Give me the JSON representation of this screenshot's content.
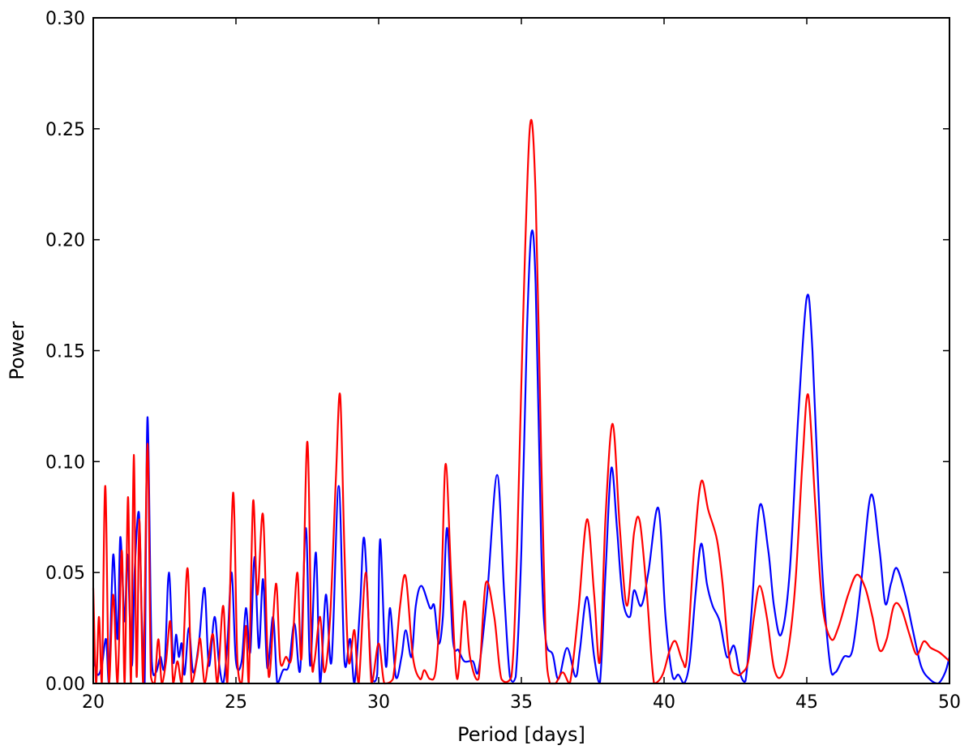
{
  "chart_data": {
    "type": "line",
    "xlabel": "Period [days]",
    "ylabel": "Power",
    "xlim": [
      20,
      50
    ],
    "ylim": [
      0,
      0.3
    ],
    "xticks": [
      "20",
      "25",
      "30",
      "35",
      "40",
      "45",
      "50"
    ],
    "yticks": [
      "0.00",
      "0.05",
      "0.10",
      "0.15",
      "0.20",
      "0.25",
      "0.30"
    ],
    "grid": false,
    "legend": "none",
    "series": [
      {
        "color": "#0000ff",
        "points": [
          [
            20.0,
            0.012
          ],
          [
            20.15,
            0.004
          ],
          [
            20.3,
            0.008
          ],
          [
            20.45,
            0.02
          ],
          [
            20.55,
            0.0
          ],
          [
            20.7,
            0.058
          ],
          [
            20.85,
            0.02
          ],
          [
            20.95,
            0.066
          ],
          [
            21.1,
            0.028
          ],
          [
            21.2,
            0.058
          ],
          [
            21.35,
            0.008
          ],
          [
            21.45,
            0.05
          ],
          [
            21.6,
            0.077
          ],
          [
            21.7,
            0.03
          ],
          [
            21.8,
            0.0
          ],
          [
            21.9,
            0.12
          ],
          [
            22.05,
            0.01
          ],
          [
            22.2,
            0.005
          ],
          [
            22.35,
            0.012
          ],
          [
            22.5,
            0.008
          ],
          [
            22.65,
            0.05
          ],
          [
            22.8,
            0.01
          ],
          [
            22.9,
            0.022
          ],
          [
            23.0,
            0.012
          ],
          [
            23.1,
            0.018
          ],
          [
            23.2,
            0.004
          ],
          [
            23.35,
            0.025
          ],
          [
            23.5,
            0.005
          ],
          [
            23.7,
            0.018
          ],
          [
            23.9,
            0.043
          ],
          [
            24.05,
            0.008
          ],
          [
            24.25,
            0.03
          ],
          [
            24.4,
            0.01
          ],
          [
            24.55,
            0.0
          ],
          [
            24.7,
            0.018
          ],
          [
            24.85,
            0.05
          ],
          [
            25.0,
            0.01
          ],
          [
            25.2,
            0.01
          ],
          [
            25.35,
            0.034
          ],
          [
            25.5,
            0.014
          ],
          [
            25.65,
            0.057
          ],
          [
            25.8,
            0.016
          ],
          [
            25.95,
            0.047
          ],
          [
            26.1,
            0.007
          ],
          [
            26.3,
            0.03
          ],
          [
            26.45,
            0.0
          ],
          [
            26.65,
            0.006
          ],
          [
            26.85,
            0.008
          ],
          [
            27.05,
            0.027
          ],
          [
            27.25,
            0.006
          ],
          [
            27.45,
            0.07
          ],
          [
            27.6,
            0.008
          ],
          [
            27.8,
            0.059
          ],
          [
            27.95,
            0.0
          ],
          [
            28.15,
            0.04
          ],
          [
            28.35,
            0.01
          ],
          [
            28.6,
            0.089
          ],
          [
            28.8,
            0.01
          ],
          [
            29.0,
            0.02
          ],
          [
            29.15,
            0.0
          ],
          [
            29.35,
            0.035
          ],
          [
            29.5,
            0.065
          ],
          [
            29.75,
            0.003
          ],
          [
            29.95,
            0.004
          ],
          [
            30.05,
            0.065
          ],
          [
            30.25,
            0.008
          ],
          [
            30.4,
            0.034
          ],
          [
            30.6,
            0.003
          ],
          [
            30.8,
            0.012
          ],
          [
            30.95,
            0.024
          ],
          [
            31.15,
            0.012
          ],
          [
            31.3,
            0.035
          ],
          [
            31.5,
            0.044
          ],
          [
            31.8,
            0.034
          ],
          [
            31.95,
            0.035
          ],
          [
            32.1,
            0.018
          ],
          [
            32.25,
            0.03
          ],
          [
            32.4,
            0.07
          ],
          [
            32.6,
            0.02
          ],
          [
            32.8,
            0.015
          ],
          [
            33.0,
            0.01
          ],
          [
            33.3,
            0.01
          ],
          [
            33.5,
            0.006
          ],
          [
            33.8,
            0.04
          ],
          [
            34.15,
            0.094
          ],
          [
            34.4,
            0.04
          ],
          [
            34.6,
            0.003
          ],
          [
            34.8,
            0.003
          ],
          [
            35.0,
            0.06
          ],
          [
            35.2,
            0.16
          ],
          [
            35.35,
            0.203
          ],
          [
            35.5,
            0.18
          ],
          [
            35.7,
            0.06
          ],
          [
            35.85,
            0.02
          ],
          [
            36.1,
            0.013
          ],
          [
            36.3,
            0.002
          ],
          [
            36.6,
            0.016
          ],
          [
            36.9,
            0.003
          ],
          [
            37.05,
            0.015
          ],
          [
            37.3,
            0.039
          ],
          [
            37.55,
            0.012
          ],
          [
            37.75,
            0.0
          ],
          [
            37.95,
            0.05
          ],
          [
            38.15,
            0.097
          ],
          [
            38.35,
            0.07
          ],
          [
            38.55,
            0.038
          ],
          [
            38.8,
            0.03
          ],
          [
            38.95,
            0.042
          ],
          [
            39.2,
            0.035
          ],
          [
            39.45,
            0.05
          ],
          [
            39.8,
            0.079
          ],
          [
            40.05,
            0.03
          ],
          [
            40.3,
            0.003
          ],
          [
            40.5,
            0.004
          ],
          [
            40.7,
            0.0
          ],
          [
            40.9,
            0.01
          ],
          [
            41.1,
            0.04
          ],
          [
            41.3,
            0.063
          ],
          [
            41.5,
            0.045
          ],
          [
            41.7,
            0.035
          ],
          [
            41.95,
            0.028
          ],
          [
            42.2,
            0.012
          ],
          [
            42.45,
            0.017
          ],
          [
            42.65,
            0.005
          ],
          [
            42.85,
            0.001
          ],
          [
            43.05,
            0.03
          ],
          [
            43.35,
            0.08
          ],
          [
            43.65,
            0.06
          ],
          [
            43.85,
            0.035
          ],
          [
            44.1,
            0.022
          ],
          [
            44.4,
            0.05
          ],
          [
            44.7,
            0.12
          ],
          [
            45.0,
            0.174
          ],
          [
            45.2,
            0.15
          ],
          [
            45.5,
            0.06
          ],
          [
            45.8,
            0.01
          ],
          [
            46.0,
            0.005
          ],
          [
            46.3,
            0.012
          ],
          [
            46.6,
            0.015
          ],
          [
            46.9,
            0.045
          ],
          [
            47.25,
            0.085
          ],
          [
            47.55,
            0.06
          ],
          [
            47.75,
            0.036
          ],
          [
            47.95,
            0.045
          ],
          [
            48.15,
            0.052
          ],
          [
            48.45,
            0.04
          ],
          [
            48.7,
            0.025
          ],
          [
            49.0,
            0.008
          ],
          [
            49.3,
            0.002
          ],
          [
            49.6,
            0.0
          ],
          [
            49.85,
            0.005
          ],
          [
            50.0,
            0.012
          ]
        ]
      },
      {
        "color": "#ff0000",
        "points": [
          [
            20.0,
            0.043
          ],
          [
            20.1,
            0.0
          ],
          [
            20.2,
            0.03
          ],
          [
            20.3,
            0.0
          ],
          [
            20.42,
            0.089
          ],
          [
            20.55,
            0.0
          ],
          [
            20.7,
            0.04
          ],
          [
            20.85,
            0.0
          ],
          [
            21.0,
            0.06
          ],
          [
            21.1,
            0.0
          ],
          [
            21.22,
            0.084
          ],
          [
            21.32,
            0.0
          ],
          [
            21.42,
            0.103
          ],
          [
            21.52,
            0.003
          ],
          [
            21.62,
            0.074
          ],
          [
            21.75,
            0.0
          ],
          [
            21.9,
            0.108
          ],
          [
            22.02,
            0.003
          ],
          [
            22.15,
            0.0
          ],
          [
            22.28,
            0.02
          ],
          [
            22.4,
            0.0
          ],
          [
            22.55,
            0.01
          ],
          [
            22.7,
            0.028
          ],
          [
            22.8,
            0.0
          ],
          [
            22.95,
            0.01
          ],
          [
            23.1,
            0.0
          ],
          [
            23.3,
            0.052
          ],
          [
            23.45,
            0.0
          ],
          [
            23.65,
            0.012
          ],
          [
            23.75,
            0.02
          ],
          [
            23.9,
            0.0
          ],
          [
            24.05,
            0.012
          ],
          [
            24.2,
            0.022
          ],
          [
            24.35,
            0.0
          ],
          [
            24.55,
            0.035
          ],
          [
            24.7,
            0.0
          ],
          [
            24.9,
            0.086
          ],
          [
            25.05,
            0.01
          ],
          [
            25.2,
            0.0
          ],
          [
            25.35,
            0.026
          ],
          [
            25.45,
            0.0
          ],
          [
            25.6,
            0.082
          ],
          [
            25.75,
            0.04
          ],
          [
            25.95,
            0.076
          ],
          [
            26.15,
            0.003
          ],
          [
            26.4,
            0.045
          ],
          [
            26.55,
            0.01
          ],
          [
            26.75,
            0.012
          ],
          [
            26.95,
            0.012
          ],
          [
            27.15,
            0.05
          ],
          [
            27.3,
            0.012
          ],
          [
            27.5,
            0.109
          ],
          [
            27.65,
            0.012
          ],
          [
            27.75,
            0.01
          ],
          [
            27.95,
            0.03
          ],
          [
            28.1,
            0.005
          ],
          [
            28.3,
            0.03
          ],
          [
            28.5,
            0.092
          ],
          [
            28.65,
            0.13
          ],
          [
            28.8,
            0.06
          ],
          [
            28.95,
            0.01
          ],
          [
            29.15,
            0.024
          ],
          [
            29.3,
            0.0
          ],
          [
            29.55,
            0.05
          ],
          [
            29.75,
            0.0
          ],
          [
            30.0,
            0.018
          ],
          [
            30.2,
            0.0
          ],
          [
            30.5,
            0.002
          ],
          [
            30.75,
            0.035
          ],
          [
            30.95,
            0.048
          ],
          [
            31.2,
            0.012
          ],
          [
            31.45,
            0.002
          ],
          [
            31.6,
            0.006
          ],
          [
            31.8,
            0.002
          ],
          [
            32.0,
            0.006
          ],
          [
            32.2,
            0.045
          ],
          [
            32.35,
            0.099
          ],
          [
            32.55,
            0.045
          ],
          [
            32.75,
            0.002
          ],
          [
            33.0,
            0.037
          ],
          [
            33.2,
            0.012
          ],
          [
            33.5,
            0.002
          ],
          [
            33.75,
            0.045
          ],
          [
            34.05,
            0.03
          ],
          [
            34.3,
            0.002
          ],
          [
            34.65,
            0.003
          ],
          [
            34.85,
            0.06
          ],
          [
            35.05,
            0.16
          ],
          [
            35.3,
            0.251
          ],
          [
            35.5,
            0.22
          ],
          [
            35.7,
            0.1
          ],
          [
            35.85,
            0.02
          ],
          [
            36.0,
            0.0
          ],
          [
            36.2,
            0.0
          ],
          [
            36.45,
            0.005
          ],
          [
            36.7,
            0.0
          ],
          [
            37.0,
            0.033
          ],
          [
            37.3,
            0.074
          ],
          [
            37.55,
            0.04
          ],
          [
            37.75,
            0.01
          ],
          [
            37.95,
            0.075
          ],
          [
            38.2,
            0.117
          ],
          [
            38.45,
            0.07
          ],
          [
            38.7,
            0.035
          ],
          [
            38.95,
            0.068
          ],
          [
            39.15,
            0.073
          ],
          [
            39.4,
            0.04
          ],
          [
            39.65,
            0.0
          ],
          [
            39.95,
            0.004
          ],
          [
            40.2,
            0.015
          ],
          [
            40.4,
            0.019
          ],
          [
            40.65,
            0.01
          ],
          [
            40.8,
            0.012
          ],
          [
            41.05,
            0.06
          ],
          [
            41.3,
            0.091
          ],
          [
            41.55,
            0.078
          ],
          [
            41.85,
            0.065
          ],
          [
            42.05,
            0.045
          ],
          [
            42.3,
            0.01
          ],
          [
            42.55,
            0.004
          ],
          [
            42.75,
            0.005
          ],
          [
            42.95,
            0.01
          ],
          [
            43.15,
            0.03
          ],
          [
            43.35,
            0.044
          ],
          [
            43.6,
            0.03
          ],
          [
            43.85,
            0.007
          ],
          [
            44.1,
            0.003
          ],
          [
            44.35,
            0.015
          ],
          [
            44.6,
            0.045
          ],
          [
            44.85,
            0.1
          ],
          [
            45.05,
            0.13
          ],
          [
            45.3,
            0.08
          ],
          [
            45.55,
            0.035
          ],
          [
            45.85,
            0.02
          ],
          [
            46.1,
            0.025
          ],
          [
            46.45,
            0.04
          ],
          [
            46.75,
            0.049
          ],
          [
            47.05,
            0.043
          ],
          [
            47.3,
            0.03
          ],
          [
            47.55,
            0.015
          ],
          [
            47.8,
            0.02
          ],
          [
            48.05,
            0.035
          ],
          [
            48.3,
            0.034
          ],
          [
            48.6,
            0.022
          ],
          [
            48.85,
            0.013
          ],
          [
            49.1,
            0.019
          ],
          [
            49.35,
            0.016
          ],
          [
            49.65,
            0.014
          ],
          [
            50.0,
            0.01
          ]
        ]
      }
    ]
  }
}
